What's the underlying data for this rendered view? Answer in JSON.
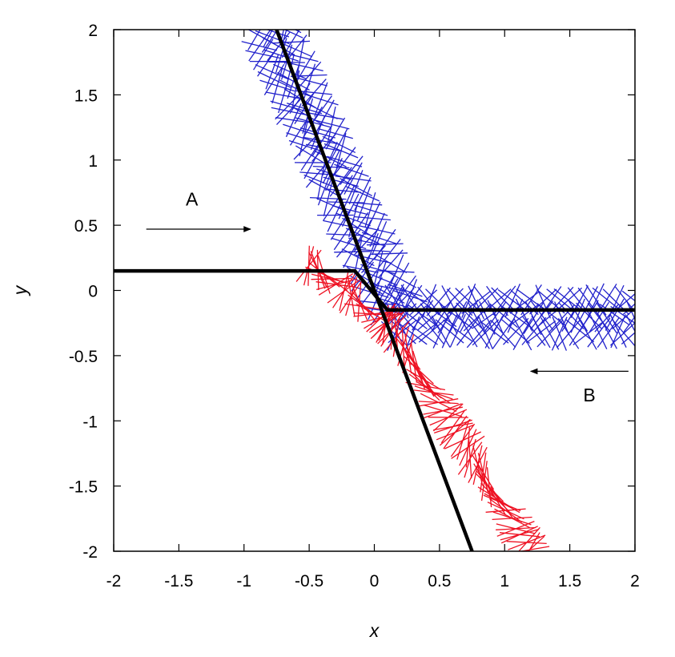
{
  "chart_data": {
    "type": "line",
    "title": "",
    "xlabel": "x",
    "ylabel": "y",
    "xlim": [
      -2,
      2
    ],
    "ylim": [
      -2,
      2
    ],
    "xticks": [
      "-2",
      "-1.5",
      "-1",
      "-0.5",
      "0",
      "0.5",
      "1",
      "1.5",
      "2"
    ],
    "yticks": [
      "-2",
      "-1.5",
      "-1",
      "-0.5",
      "0",
      "0.5",
      "1",
      "1.5",
      "2"
    ],
    "grid": false,
    "series": [
      {
        "name": "",
        "style": "black-thick-line",
        "color": "#000000",
        "points": [
          [
            -2,
            0.15
          ],
          [
            -0.15,
            0.15
          ],
          [
            0.1,
            -0.15
          ],
          [
            2,
            -0.15
          ]
        ]
      },
      {
        "name": "",
        "style": "black-thick-line",
        "color": "#000000",
        "points": [
          [
            -0.75,
            2
          ],
          [
            0.75,
            -2
          ]
        ]
      },
      {
        "name": "",
        "style": "blue-rod-director-field",
        "color": "#2222cc",
        "branches": [
          {
            "from": [
              -0.8,
              2.0
            ],
            "to": [
              0.15,
              -0.1
            ]
          },
          {
            "from": [
              0.15,
              -0.2
            ],
            "to": [
              2.0,
              -0.2
            ]
          }
        ]
      },
      {
        "name": "",
        "style": "red-rod-director-field",
        "color": "#ee1122",
        "branches": [
          {
            "from": [
              -0.5,
              0.2
            ],
            "to": [
              0.1,
              -0.25
            ]
          },
          {
            "from": [
              0.1,
              -0.25
            ],
            "to": [
              1.2,
              -2.0
            ]
          }
        ]
      }
    ],
    "annotations": [
      {
        "text": "A",
        "x": -1.4,
        "y": 0.65,
        "arrow_from": [
          -1.75,
          0.47
        ],
        "arrow_to": [
          -0.95,
          0.47
        ]
      },
      {
        "text": "B",
        "x": 1.65,
        "y": -0.85,
        "arrow_from": [
          1.95,
          -0.62
        ],
        "arrow_to": [
          1.2,
          -0.62
        ]
      }
    ]
  }
}
